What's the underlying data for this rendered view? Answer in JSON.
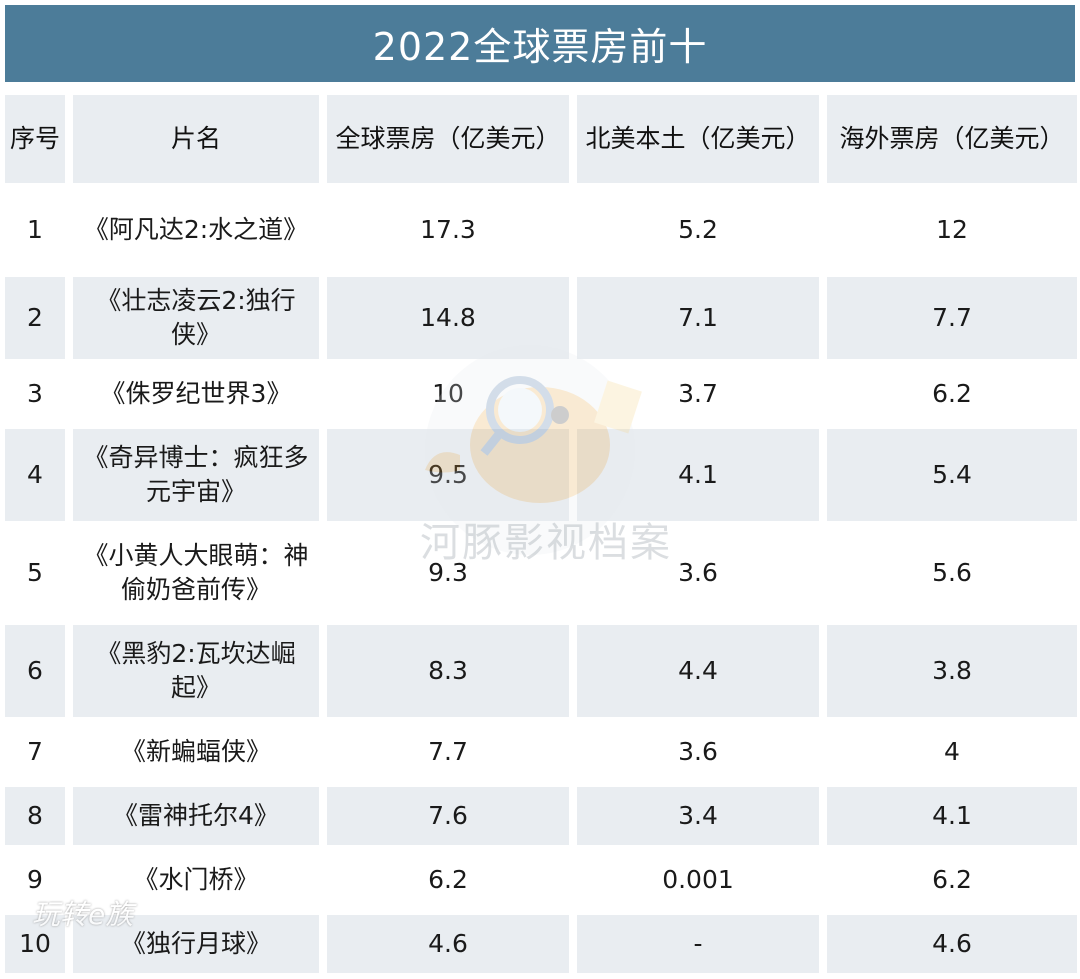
{
  "title": "2022全球票房前十",
  "headers": {
    "rank": "序号",
    "name": "片名",
    "global": "全球票房（亿美元）",
    "domestic": "北美本土（亿美元）",
    "overseas": "海外票房（亿美元）"
  },
  "rows": [
    {
      "rank": "1",
      "name": "《阿凡达2:水之道》",
      "global": "17.3",
      "domestic": "5.2",
      "overseas": "12"
    },
    {
      "rank": "2",
      "name": "《壮志凌云2:独行侠》",
      "global": "14.8",
      "domestic": "7.1",
      "overseas": "7.7"
    },
    {
      "rank": "3",
      "name": "《侏罗纪世界3》",
      "global": "10",
      "domestic": "3.7",
      "overseas": "6.2"
    },
    {
      "rank": "4",
      "name": "《奇异博士：疯狂多元宇宙》",
      "global": "9.5",
      "domestic": "4.1",
      "overseas": "5.4"
    },
    {
      "rank": "5",
      "name": "《小黄人大眼萌：神偷奶爸前传》",
      "global": "9.3",
      "domestic": "3.6",
      "overseas": "5.6"
    },
    {
      "rank": "6",
      "name": "《黑豹2:瓦坎达崛起》",
      "global": "8.3",
      "domestic": "4.4",
      "overseas": "3.8"
    },
    {
      "rank": "7",
      "name": "《新蝙蝠侠》",
      "global": "7.7",
      "domestic": "3.6",
      "overseas": "4"
    },
    {
      "rank": "8",
      "name": "《雷神托尔4》",
      "global": "7.6",
      "domestic": "3.4",
      "overseas": "4.1"
    },
    {
      "rank": "9",
      "name": "《水门桥》",
      "global": "6.2",
      "domestic": "0.001",
      "overseas": "6.2"
    },
    {
      "rank": "10",
      "name": "《独行月球》",
      "global": "4.6",
      "domestic": "-",
      "overseas": "4.6"
    }
  ],
  "watermark": {
    "text": "河豚影视档案",
    "bottom_text": "玩转e族"
  }
}
